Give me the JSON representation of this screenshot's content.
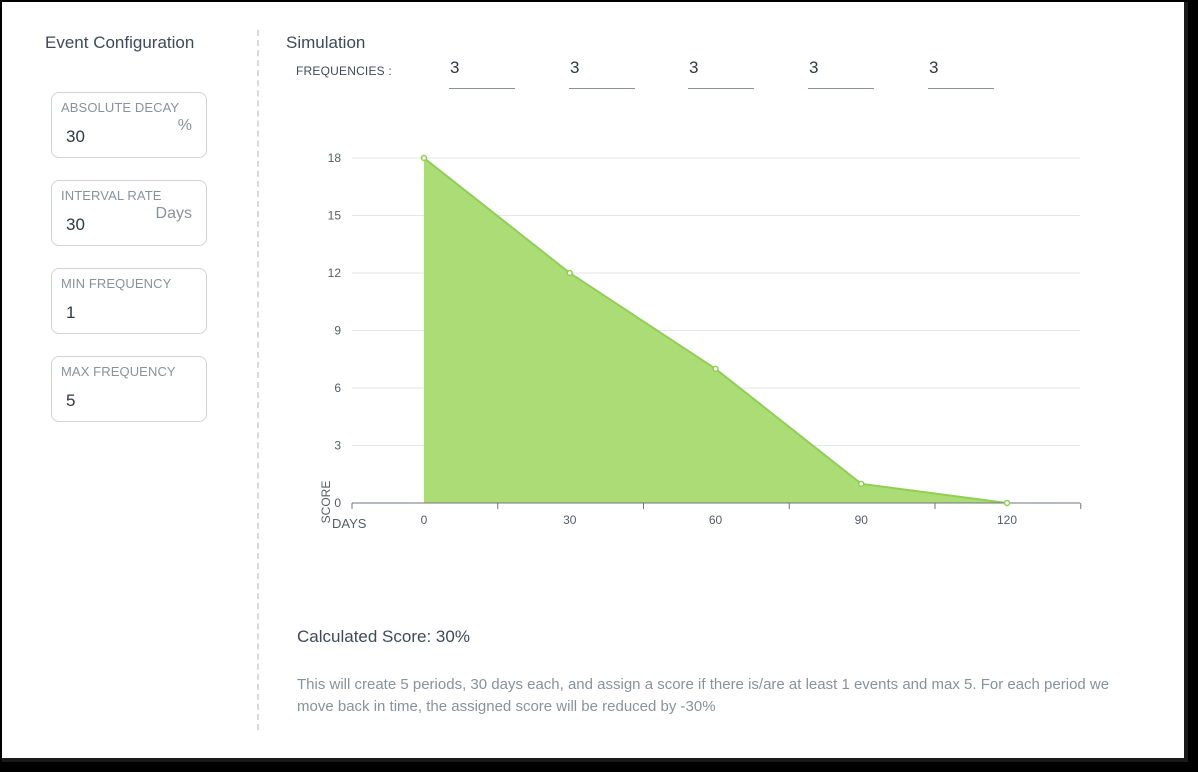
{
  "sidebar": {
    "title": "Event Configuration",
    "fields": [
      {
        "label": "ABSOLUTE DECAY",
        "value": "30",
        "unit": "%"
      },
      {
        "label": "INTERVAL RATE",
        "value": "30",
        "unit": "Days"
      },
      {
        "label": "MIN FREQUENCY",
        "value": "1",
        "unit": ""
      },
      {
        "label": "MAX FREQUENCY",
        "value": "5",
        "unit": ""
      }
    ]
  },
  "simulation": {
    "title": "Simulation",
    "frequencies_label": "FREQUENCIES :",
    "frequencies": [
      "3",
      "3",
      "3",
      "3",
      "3"
    ]
  },
  "chart_data": {
    "type": "area",
    "x": [
      0,
      30,
      60,
      90,
      120
    ],
    "y": [
      18,
      12,
      7,
      1,
      0
    ],
    "xlabel": "DAYS",
    "ylabel": "SCORE",
    "ylim": [
      0,
      18
    ],
    "yticks": [
      0,
      3,
      6,
      9,
      12,
      15,
      18
    ],
    "xticks": [
      0,
      30,
      60,
      90,
      120
    ],
    "grid": true,
    "color": "#8dd14f",
    "fill_color": "#acdc76"
  },
  "result": {
    "score_text": "Calculated Score: 30%",
    "description": "This will create 5 periods, 30 days each, and assign a score if there is/are at least 1 events and max 5. For each period we move back in time, the assigned score will be reduced by -30%"
  }
}
